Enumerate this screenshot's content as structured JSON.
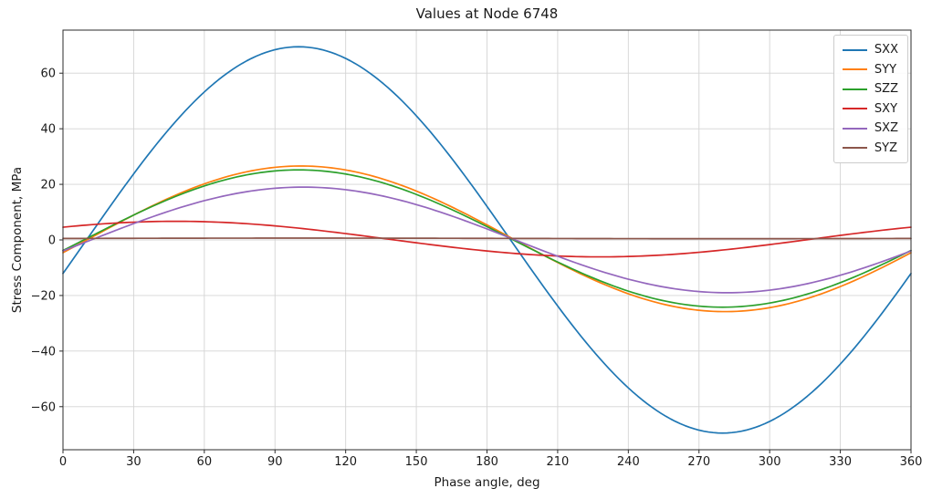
{
  "figure": {
    "title": "Values at Node 6748"
  },
  "chart_data": {
    "type": "line",
    "title": "Values at Node 6748",
    "xlabel": "Phase angle, deg",
    "ylabel": "Stress Component, MPa",
    "xlim": [
      0,
      360
    ],
    "ylim": [
      -75.5,
      75.5
    ],
    "x_ticks": [
      0,
      30,
      60,
      90,
      120,
      150,
      180,
      210,
      240,
      270,
      300,
      330,
      360
    ],
    "y_ticks": [
      -60,
      -40,
      -20,
      0,
      20,
      40,
      60
    ],
    "grid": true,
    "grid_color": "#d4d4d4",
    "legend_position": "upper right",
    "x_sample_deg": [
      0,
      15,
      30,
      45,
      60,
      75,
      90,
      105,
      120,
      135,
      150,
      165,
      180,
      195,
      210,
      225,
      240,
      255,
      270,
      285,
      300,
      315,
      330,
      345,
      360
    ],
    "series": [
      {
        "name": "SXX",
        "color": "#1f77b4",
        "model": {
          "shape": "sinusoid",
          "amplitude_mpa": 69.5,
          "phase_deg": -10,
          "offset_mpa": 0
        },
        "values": [
          -12.1,
          6.1,
          23.8,
          39.9,
          53.2,
          63.0,
          68.4,
          69.2,
          65.3,
          56.9,
          44.7,
          29.4,
          12.1,
          -6.1,
          -23.8,
          -39.9,
          -53.2,
          -63.0,
          -68.4,
          -69.2,
          -65.3,
          -56.9,
          -44.7,
          -29.4,
          -12.1
        ]
      },
      {
        "name": "SYY",
        "color": "#ff7f0e",
        "model": {
          "shape": "sinusoid",
          "amplitude_mpa": 26.2,
          "phase_deg": -11,
          "offset_mpa": 0.4
        },
        "values": [
          -4.6,
          2.2,
          8.9,
          15.1,
          20.2,
          23.9,
          26.1,
          26.5,
          25.2,
          22.1,
          17.6,
          11.9,
          5.4,
          -1.4,
          -8.1,
          -14.3,
          -19.4,
          -23.1,
          -25.3,
          -25.7,
          -24.4,
          -21.3,
          -16.8,
          -11.1,
          -4.6
        ]
      },
      {
        "name": "SZZ",
        "color": "#2ca02c",
        "model": {
          "shape": "sinusoid",
          "amplitude_mpa": 24.7,
          "phase_deg": -10,
          "offset_mpa": 0.5
        },
        "values": [
          -3.8,
          2.7,
          8.9,
          14.7,
          19.4,
          22.9,
          24.8,
          25.1,
          23.7,
          20.7,
          16.4,
          10.9,
          4.8,
          -1.7,
          -7.9,
          -13.7,
          -18.4,
          -21.9,
          -23.8,
          -24.1,
          -22.7,
          -19.7,
          -15.4,
          -9.9,
          -3.8
        ]
      },
      {
        "name": "SXY",
        "color": "#d62728",
        "model": {
          "shape": "sinusoid",
          "amplitude_mpa": 6.4,
          "phase_deg": 42,
          "offset_mpa": 0.3
        },
        "values": [
          4.6,
          5.7,
          6.4,
          6.7,
          6.6,
          6.0,
          5.1,
          3.8,
          2.3,
          0.6,
          -1.0,
          -2.6,
          -4.0,
          -5.1,
          -5.8,
          -6.1,
          -6.0,
          -5.4,
          -4.5,
          -3.2,
          -1.7,
          0.0,
          1.6,
          3.2,
          4.6
        ]
      },
      {
        "name": "SXZ",
        "color": "#9467bd",
        "model": {
          "shape": "sinusoid",
          "amplitude_mpa": 19.0,
          "phase_deg": -12,
          "offset_mpa": 0
        },
        "values": [
          -4.0,
          1.0,
          5.9,
          10.3,
          14.1,
          16.9,
          18.6,
          19.0,
          18.1,
          15.9,
          12.7,
          8.6,
          4.0,
          -1.0,
          -5.9,
          -10.3,
          -14.1,
          -16.9,
          -18.6,
          -19.0,
          -18.1,
          -15.9,
          -12.7,
          -8.6,
          -4.0
        ]
      },
      {
        "name": "SYZ",
        "color": "#8c564b",
        "model": {
          "shape": "sinusoid",
          "amplitude_mpa": 0.1,
          "phase_deg": -10,
          "offset_mpa": 0.55
        },
        "values": [
          0.5,
          0.6,
          0.6,
          0.6,
          0.6,
          0.6,
          0.6,
          0.7,
          0.6,
          0.6,
          0.6,
          0.6,
          0.6,
          0.5,
          0.5,
          0.5,
          0.5,
          0.5,
          0.5,
          0.5,
          0.5,
          0.5,
          0.5,
          0.5,
          0.5
        ]
      }
    ]
  }
}
